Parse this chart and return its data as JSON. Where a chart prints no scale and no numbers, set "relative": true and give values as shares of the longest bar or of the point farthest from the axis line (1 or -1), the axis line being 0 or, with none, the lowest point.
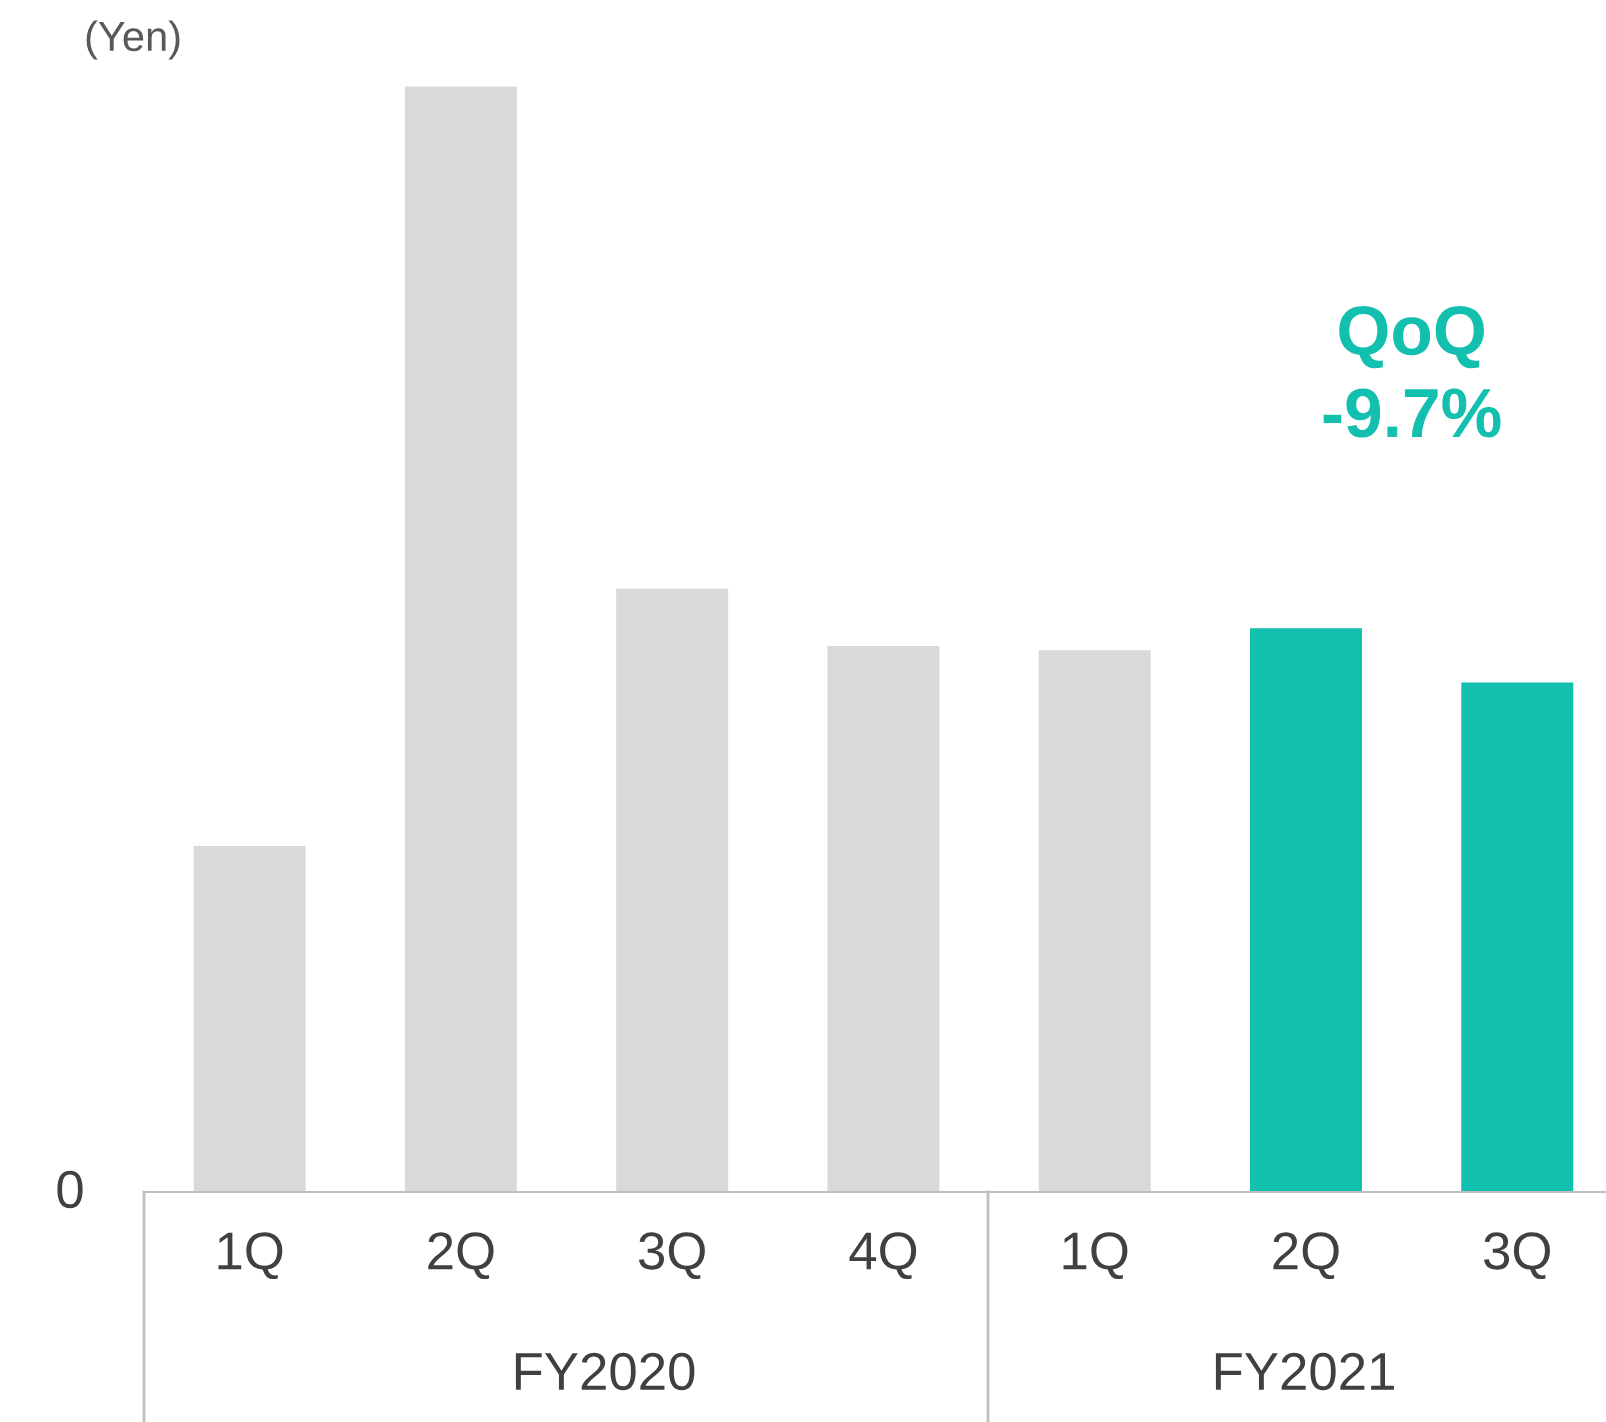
{
  "chart_data": {
    "type": "bar",
    "relative": true,
    "ylabel": "(Yen)",
    "categories": [
      "1Q",
      "2Q",
      "3Q",
      "4Q",
      "1Q",
      "2Q",
      "3Q"
    ],
    "values": [
      0.313,
      1,
      0.546,
      0.494,
      0.49,
      0.51,
      0.461
    ],
    "colors": [
      "#d9d9d9",
      "#d9d9d9",
      "#d9d9d9",
      "#d9d9d9",
      "#d9d9d9",
      "#13bfae",
      "#13bfae"
    ],
    "annotations": [
      "0",
      "QoQ\n-9.7%",
      "FY2020",
      "FY2021"
    ],
    "grid": false,
    "legend": false
  }
}
